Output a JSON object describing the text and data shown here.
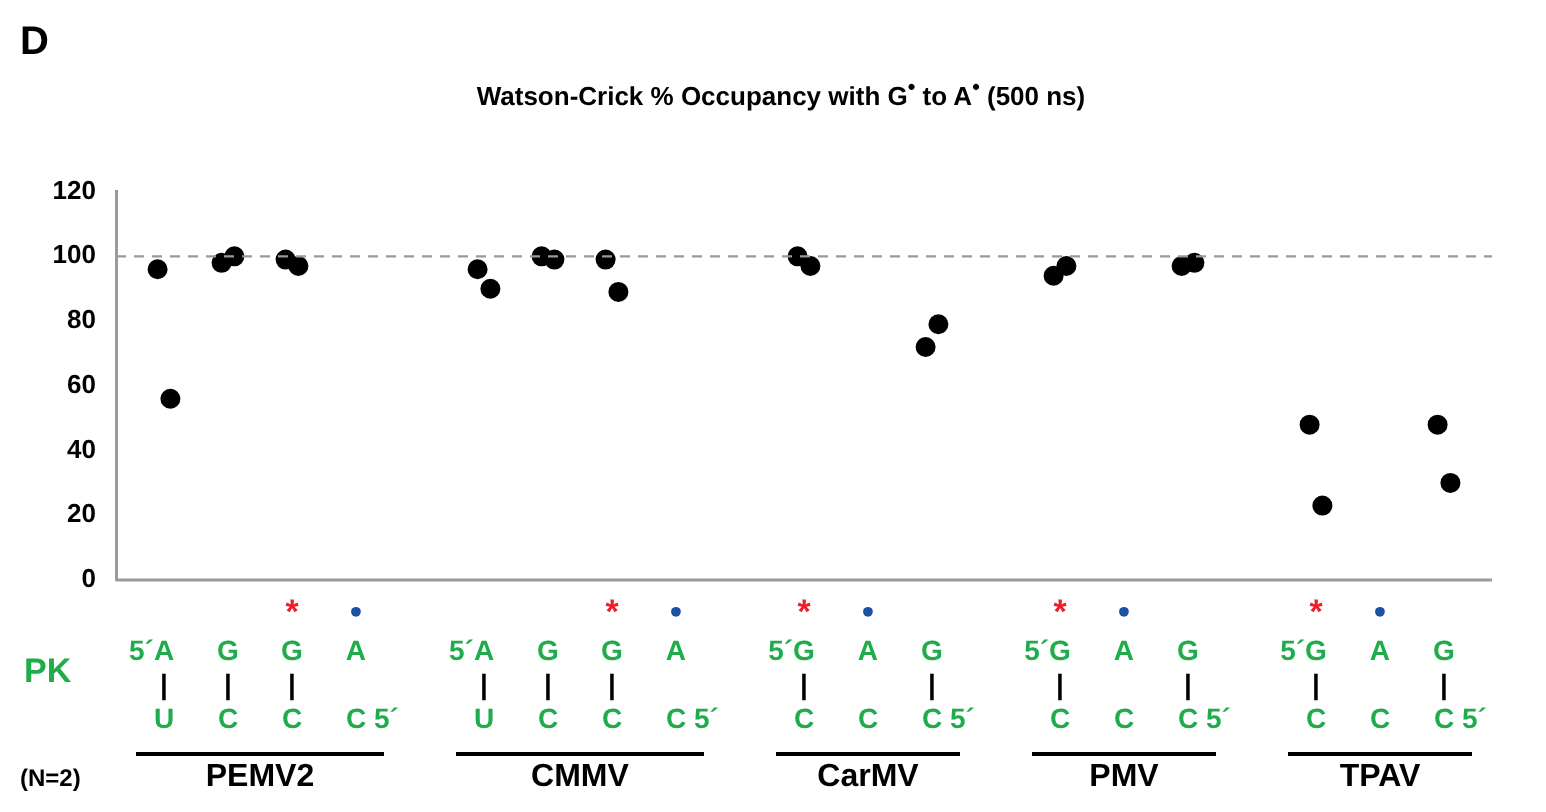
{
  "chart_data": {
    "type": "scatter",
    "title": "Watson-Crick % Occupancy with G$^{•}$ to A$^{•}$ (500 ns)",
    "annotations": [
      "D",
      "PK",
      "(N=2)",
      "PEMV2",
      "CMMV",
      "CarMV",
      "PMV",
      "TPAV"
    ],
    "categories": [
      "\n5´A\n|\nU",
      "\nG\n|\nC",
      "*\nG\n|\nC",
      "•\nA\nC 5´",
      null,
      "\n5´A\n|\nU",
      "\nG\n|\nC",
      "*\nG\n|\nC",
      "•\nA\nC 5´",
      null,
      "*\n5´G\n|\nC",
      "•\nA\nC",
      "\nG\n|\nC 5´",
      null,
      "*\n5´G\n|\nC",
      "•\nA\nC",
      "\nG\n|\nC 5´",
      null,
      "*\n5´G\n|\nC",
      "•\nA\nC",
      "\nG\n|\nC 5´"
    ],
    "series": [
      {
        "color": "#000000",
        "values": [
          96,
          98,
          99,
          null,
          null,
          96,
          100,
          99,
          null,
          null,
          100,
          null,
          72,
          null,
          94,
          null,
          97,
          null,
          48,
          null,
          48
        ]
      },
      {
        "color": "#000000",
        "values": [
          56,
          100,
          97,
          null,
          null,
          90,
          99,
          89,
          null,
          null,
          97,
          null,
          79,
          null,
          97,
          null,
          98,
          null,
          23,
          null,
          30
        ]
      }
    ],
    "ylim": [
      0,
      120
    ],
    "yticks": [
      0,
      20,
      40,
      60,
      80,
      100,
      120
    ],
    "ref_lines": [
      {
        "axis": "y",
        "value": 100,
        "color": "#999999",
        "line_style": "dashed"
      }
    ],
    "marker": "circle",
    "grid": false
  }
}
